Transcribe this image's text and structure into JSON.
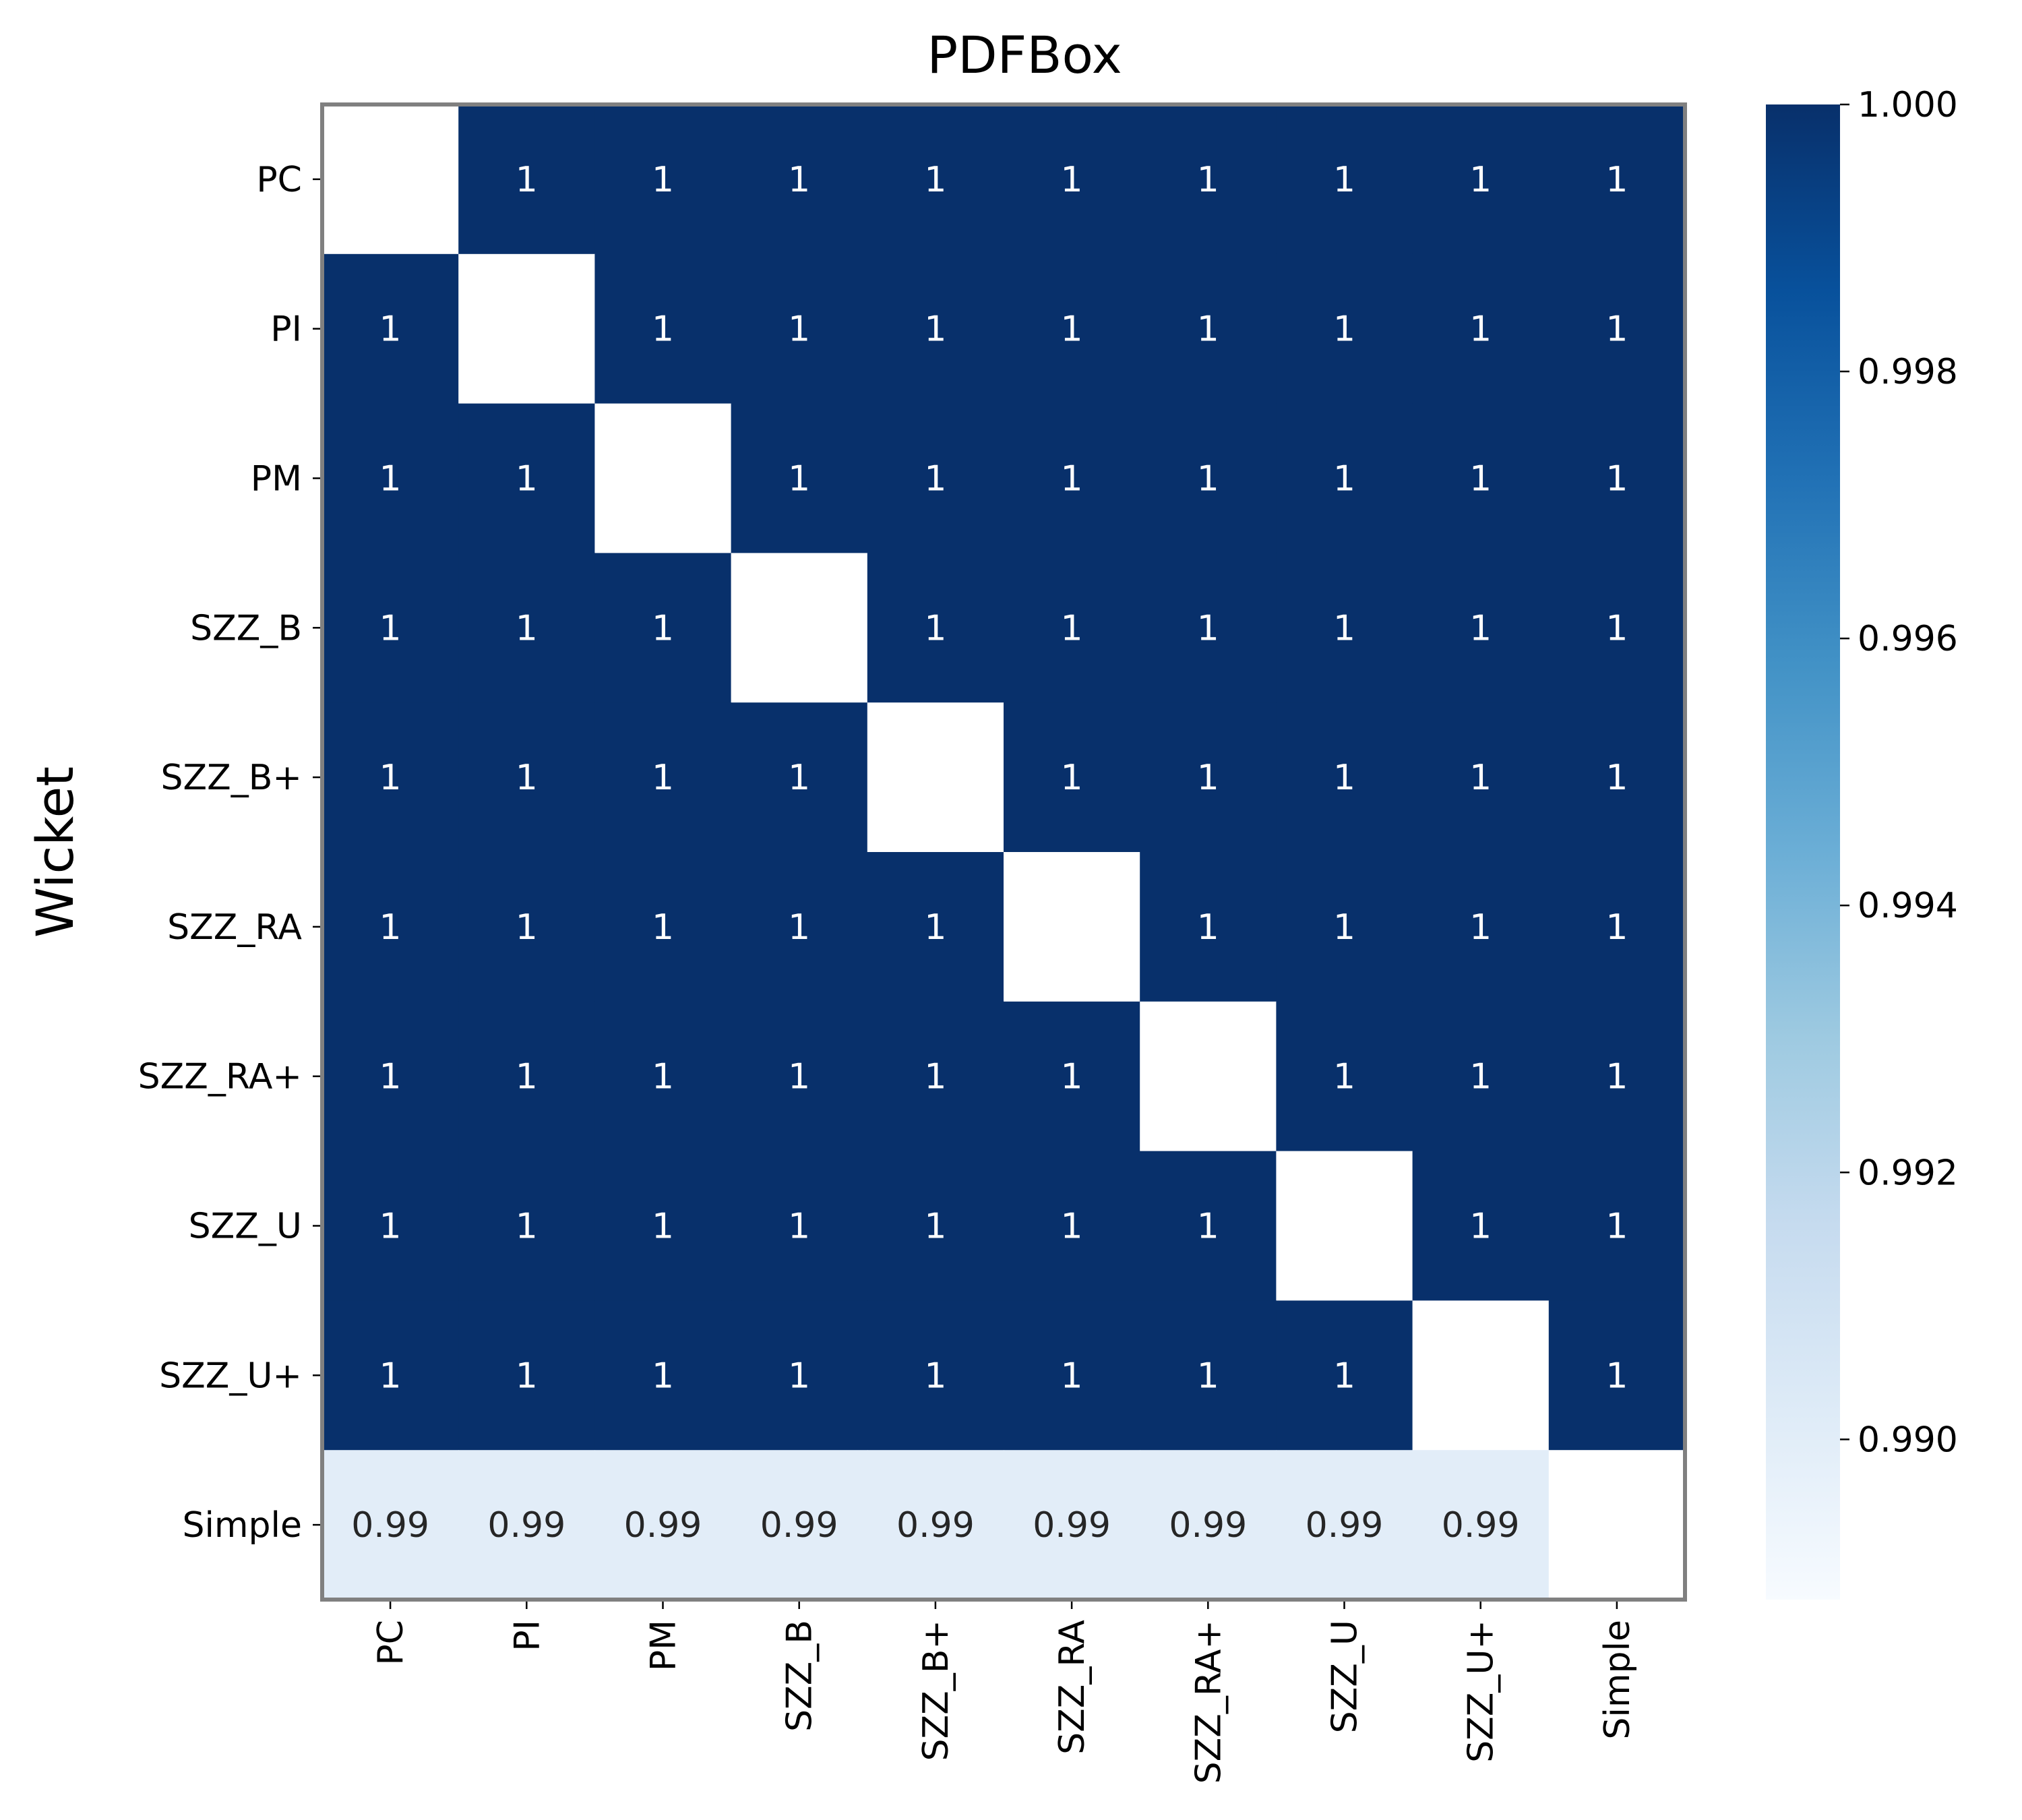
{
  "chart_data": {
    "type": "heatmap",
    "title": "PDFBox",
    "ylabel": "Wicket",
    "xlabel": "",
    "categories_x": [
      "PC",
      "PI",
      "PM",
      "SZZ_B",
      "SZZ_B+",
      "SZZ_RA",
      "SZZ_RA+",
      "SZZ_U",
      "SZZ_U+",
      "Simple"
    ],
    "categories_y": [
      "PC",
      "PI",
      "PM",
      "SZZ_B",
      "SZZ_B+",
      "SZZ_RA",
      "SZZ_RA+",
      "SZZ_U",
      "SZZ_U+",
      "Simple"
    ],
    "values": [
      [
        null,
        1,
        1,
        1,
        1,
        1,
        1,
        1,
        1,
        1
      ],
      [
        1,
        null,
        1,
        1,
        1,
        1,
        1,
        1,
        1,
        1
      ],
      [
        1,
        1,
        null,
        1,
        1,
        1,
        1,
        1,
        1,
        1
      ],
      [
        1,
        1,
        1,
        null,
        1,
        1,
        1,
        1,
        1,
        1
      ],
      [
        1,
        1,
        1,
        1,
        null,
        1,
        1,
        1,
        1,
        1
      ],
      [
        1,
        1,
        1,
        1,
        1,
        null,
        1,
        1,
        1,
        1
      ],
      [
        1,
        1,
        1,
        1,
        1,
        1,
        null,
        1,
        1,
        1
      ],
      [
        1,
        1,
        1,
        1,
        1,
        1,
        1,
        null,
        1,
        1
      ],
      [
        1,
        1,
        1,
        1,
        1,
        1,
        1,
        1,
        null,
        1
      ],
      [
        0.99,
        0.99,
        0.99,
        0.99,
        0.99,
        0.99,
        0.99,
        0.99,
        0.99,
        null
      ]
    ],
    "labels": [
      [
        "",
        "1",
        "1",
        "1",
        "1",
        "1",
        "1",
        "1",
        "1",
        "1"
      ],
      [
        "1",
        "",
        "1",
        "1",
        "1",
        "1",
        "1",
        "1",
        "1",
        "1"
      ],
      [
        "1",
        "1",
        "",
        "1",
        "1",
        "1",
        "1",
        "1",
        "1",
        "1"
      ],
      [
        "1",
        "1",
        "1",
        "",
        "1",
        "1",
        "1",
        "1",
        "1",
        "1"
      ],
      [
        "1",
        "1",
        "1",
        "1",
        "",
        "1",
        "1",
        "1",
        "1",
        "1"
      ],
      [
        "1",
        "1",
        "1",
        "1",
        "1",
        "",
        "1",
        "1",
        "1",
        "1"
      ],
      [
        "1",
        "1",
        "1",
        "1",
        "1",
        "1",
        "",
        "1",
        "1",
        "1"
      ],
      [
        "1",
        "1",
        "1",
        "1",
        "1",
        "1",
        "1",
        "",
        "1",
        "1"
      ],
      [
        "1",
        "1",
        "1",
        "1",
        "1",
        "1",
        "1",
        "1",
        "",
        "1"
      ],
      [
        "0.99",
        "0.99",
        "0.99",
        "0.99",
        "0.99",
        "0.99",
        "0.99",
        "0.99",
        "0.99",
        ""
      ]
    ],
    "colorbar": {
      "min": 0.9888,
      "max": 1.0,
      "ticks": [
        0.99,
        0.992,
        0.994,
        0.996,
        0.998,
        1.0
      ],
      "tick_labels": [
        "0.990",
        "0.992",
        "0.994",
        "0.996",
        "0.998",
        "1.000"
      ],
      "colormap": "Blues",
      "colors": [
        "#f7fbff",
        "#deebf7",
        "#c6dbef",
        "#9ecae1",
        "#6baed6",
        "#4292c6",
        "#2171b5",
        "#08519c",
        "#08306b"
      ]
    },
    "grid": false,
    "frame_color": "#808080"
  }
}
